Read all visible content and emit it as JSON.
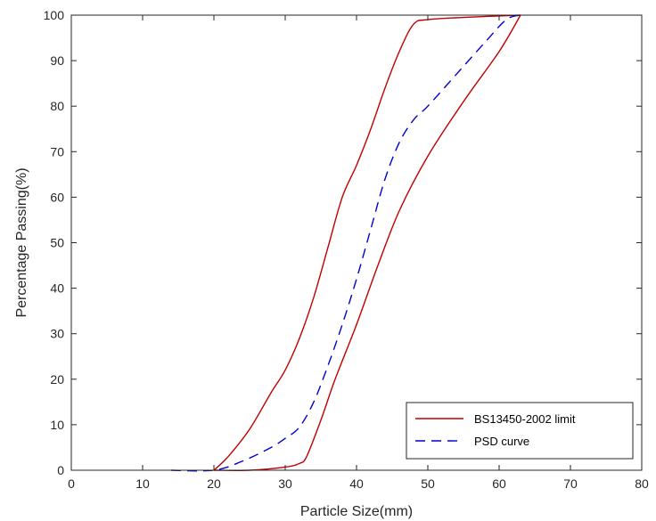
{
  "chart_data": {
    "type": "line",
    "title": "",
    "xlabel": "Particle Size(mm)",
    "ylabel": "Percentage Passing(%)",
    "xlim": [
      0,
      80
    ],
    "ylim": [
      0,
      100
    ],
    "xticks": [
      0,
      10,
      20,
      30,
      40,
      50,
      60,
      70,
      80
    ],
    "yticks": [
      0,
      10,
      20,
      30,
      40,
      50,
      60,
      70,
      80,
      90,
      100
    ],
    "grid": false,
    "legend_position": "bottom-right",
    "series": [
      {
        "name": "BS13450-2002 limit",
        "style": "solid",
        "color": "#c00000",
        "show_in_legend": true,
        "points": [
          [
            20,
            0
          ],
          [
            22,
            3
          ],
          [
            25,
            9
          ],
          [
            28,
            17
          ],
          [
            30,
            22
          ],
          [
            32,
            29
          ],
          [
            34,
            38
          ],
          [
            36,
            49
          ],
          [
            38,
            60
          ],
          [
            40,
            67
          ],
          [
            42,
            75
          ],
          [
            44,
            84
          ],
          [
            46,
            92
          ],
          [
            48,
            98
          ],
          [
            50,
            99
          ],
          [
            55,
            99.5
          ],
          [
            63,
            100
          ]
        ]
      },
      {
        "name": "",
        "style": "solid",
        "color": "#c00000",
        "show_in_legend": false,
        "points": [
          [
            20,
            0
          ],
          [
            25,
            0
          ],
          [
            30,
            0.7
          ],
          [
            32,
            1.5
          ],
          [
            33,
            3
          ],
          [
            35,
            11
          ],
          [
            37,
            20
          ],
          [
            40,
            32
          ],
          [
            43,
            45
          ],
          [
            46,
            57
          ],
          [
            50,
            69
          ],
          [
            55,
            81
          ],
          [
            60,
            92
          ],
          [
            63,
            100
          ]
        ]
      },
      {
        "name": "PSD curve",
        "style": "dashed",
        "color": "#0000cc",
        "show_in_legend": true,
        "points": [
          [
            14,
            0
          ],
          [
            20,
            0
          ],
          [
            24,
            2
          ],
          [
            28,
            5
          ],
          [
            30,
            7
          ],
          [
            32,
            9.5
          ],
          [
            34,
            15
          ],
          [
            36,
            23
          ],
          [
            38,
            32
          ],
          [
            40,
            42
          ],
          [
            42,
            53
          ],
          [
            44,
            64
          ],
          [
            46,
            72
          ],
          [
            48,
            77
          ],
          [
            50,
            80
          ],
          [
            54,
            87
          ],
          [
            58,
            94
          ],
          [
            61,
            99
          ],
          [
            63,
            100
          ]
        ]
      }
    ]
  }
}
